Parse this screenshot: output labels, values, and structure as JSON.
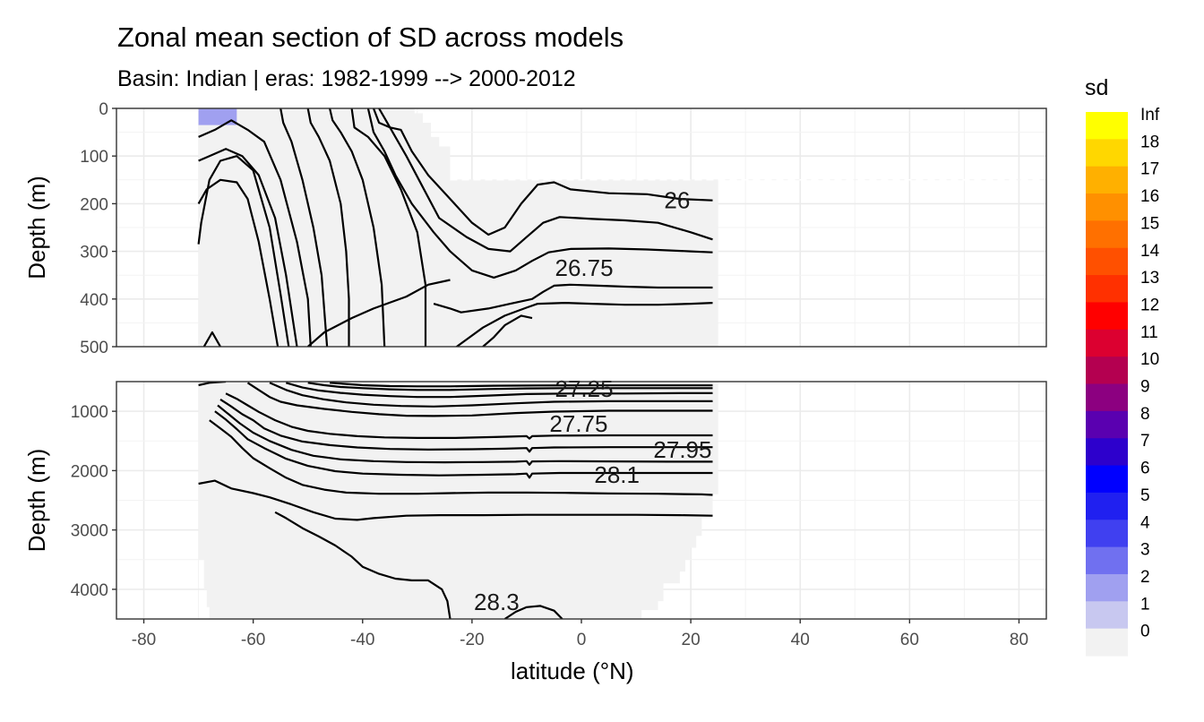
{
  "header": {
    "title": "Zonal mean section of SD across models",
    "subtitle": "Basin: Indian | eras: 1982-1999 --> 2000-2012"
  },
  "chart_data": {
    "type": "heatmap",
    "title": "Zonal mean section of SD across models",
    "subtitle": "Basin: Indian | eras: 1982-1999 --> 2000-2012",
    "xlabel": "latitude (°N)",
    "ylabel": "Depth (m)",
    "xlim": [
      -85,
      85
    ],
    "x_ticks": [
      -80,
      -60,
      -40,
      -20,
      0,
      20,
      40,
      60,
      80
    ],
    "x_tick_labels": [
      "-80",
      "-60",
      "-40",
      "-20",
      "0",
      "20",
      "40",
      "60",
      "80"
    ],
    "panels": [
      {
        "name": "upper",
        "ylim": [
          500,
          0
        ],
        "y_ticks": [
          0,
          100,
          200,
          300,
          400,
          500
        ],
        "y_tick_labels": [
          "0",
          "100",
          "200",
          "300",
          "400",
          "500"
        ],
        "isopycnal_labels": [
          {
            "text": "26",
            "lat": 17.5,
            "depth": 193
          },
          {
            "text": "26.75",
            "lat": 0.5,
            "depth": 335
          }
        ]
      },
      {
        "name": "lower",
        "ylim": [
          4500,
          500
        ],
        "y_ticks": [
          1000,
          2000,
          3000,
          4000
        ],
        "y_tick_labels": [
          "1000",
          "2000",
          "3000",
          "4000"
        ],
        "isopycnal_labels": [
          {
            "text": "27.25",
            "lat": 0.5,
            "depth": 620
          },
          {
            "text": "27.75",
            "lat": -0.5,
            "depth": 1210
          },
          {
            "text": "27.95",
            "lat": 18.5,
            "depth": 1650
          },
          {
            "text": "28.1",
            "lat": 6.5,
            "depth": 2070
          },
          {
            "text": "28.3",
            "lat": -15.5,
            "depth": 4210
          }
        ]
      }
    ],
    "sd_field": {
      "background_value": "0-1",
      "patches": [
        {
          "bin": "1-2",
          "lat": [
            -70,
            -63
          ],
          "depth": [
            0,
            35
          ]
        }
      ]
    },
    "legend": {
      "title": "sd",
      "position": "right",
      "labels": [
        "Inf",
        "18",
        "17",
        "16",
        "15",
        "14",
        "13",
        "12",
        "11",
        "10",
        "9",
        "8",
        "7",
        "6",
        "5",
        "4",
        "3",
        "2",
        "1",
        "0"
      ],
      "colors": [
        "#FFFF00",
        "#FFD700",
        "#FFB000",
        "#FF9000",
        "#FF7000",
        "#FF5000",
        "#FF3000",
        "#FF0000",
        "#DC0030",
        "#B40050",
        "#8C0080",
        "#5A00B0",
        "#2D00CC",
        "#0000FF",
        "#2020F0",
        "#4040F0",
        "#7070F0",
        "#A0A0F0",
        "#C8C8F0",
        "#F2F2F2"
      ]
    }
  }
}
